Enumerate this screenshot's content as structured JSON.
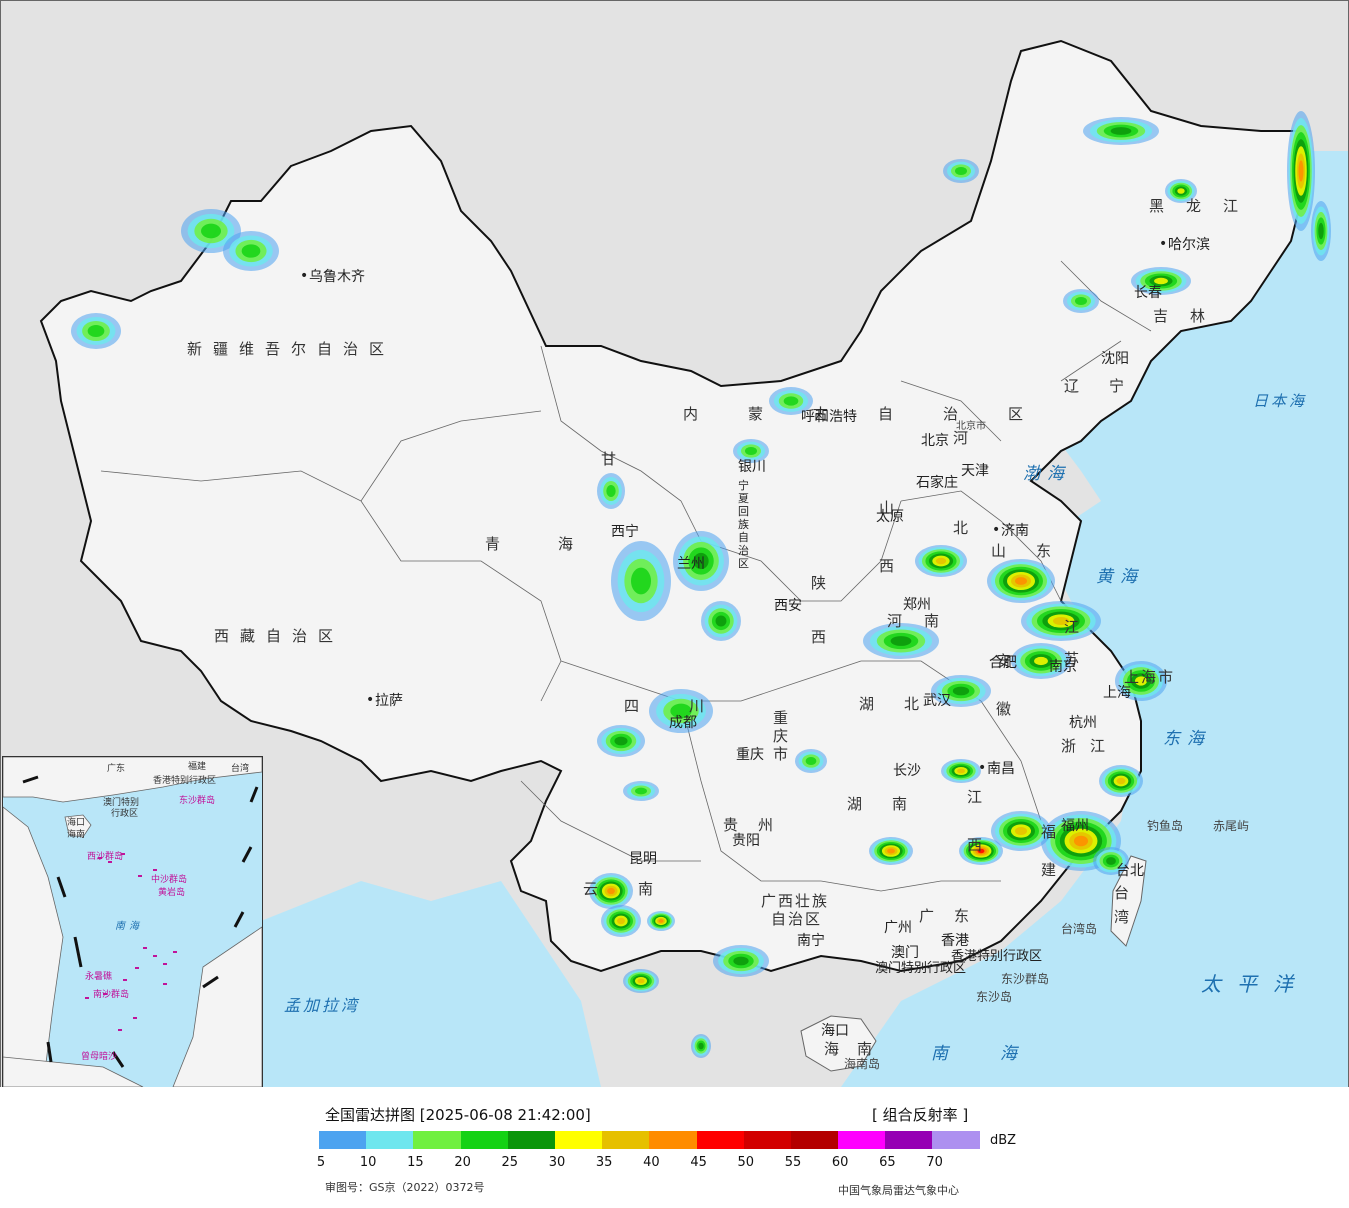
{
  "legend": {
    "title": "全国雷达拼图 [2025-06-08 21:42:00]",
    "product": "[ 组合反射率 ]",
    "unit": "dBZ",
    "approval": "审图号：GS京（2022）0372号",
    "credit": "中国气象局雷达气象中心",
    "ticks": [
      "5",
      "10",
      "15",
      "20",
      "25",
      "30",
      "35",
      "40",
      "45",
      "50",
      "55",
      "60",
      "65",
      "70"
    ],
    "colors": [
      "#4da3f0",
      "#6ee6ee",
      "#70f040",
      "#14d214",
      "#0a960a",
      "#ffff00",
      "#e6c000",
      "#ff8c00",
      "#ff0000",
      "#d20000",
      "#b40000",
      "#ff00ff",
      "#9600b4",
      "#ad90f0"
    ]
  },
  "labels": {
    "xinjiang": "新疆维吾尔自治区",
    "xizang": "西藏自治区",
    "qinghai": "青海",
    "gansu": "甘",
    "sichuan": "四川",
    "yunnan": "云南",
    "guizhou": "贵州",
    "chongqing": "重庆市",
    "shaanxi": "陕西",
    "ningxia": "宁夏回族自治区",
    "neimenggu": "内蒙古自治区",
    "heilongjiang": "黑龙江",
    "jilin": "吉林",
    "liaoning": "辽宁",
    "hebei": "河北",
    "shanxi": "山西",
    "shandong": "山东",
    "henan": "河南",
    "hubei": "湖北",
    "hunan": "湖南",
    "jiangxi": "江西",
    "anhui": "安徽",
    "jiangsu": "江苏",
    "zhejiang": "浙江",
    "fujian": "福建",
    "guangdong": "广东",
    "guangxi_1": "广西壮族",
    "guangxi_2": "自治区",
    "hainan": "海南",
    "taiwan": "台湾",
    "shanghai": "上海市",
    "hk": "香港特别行政区",
    "macau": "澳门特别行政区"
  },
  "cities": {
    "urumqi": "乌鲁木齐",
    "lhasa": "拉萨",
    "xining": "西宁",
    "lanzhou": "兰州",
    "yinchuan": "银川",
    "hohhot": "呼和浩特",
    "beijing": "北京",
    "beijing_city": "北京市",
    "tianjin": "天津",
    "shijiazhuang": "石家庄",
    "taiyuan": "太原",
    "jinan": "济南",
    "zhengzhou": "郑州",
    "xian": "西安",
    "chengdu": "成都",
    "chongqing": "重庆",
    "guiyang": "贵阳",
    "kunming": "昆明",
    "nanning": "南宁",
    "guangzhou": "广州",
    "hongkong": "香港",
    "macau": "澳门",
    "haikou": "海口",
    "changsha": "长沙",
    "wuhan": "武汉",
    "nanchang": "南昌",
    "hefei": "合肥",
    "nanjing": "南京",
    "shanghai": "上海",
    "hangzhou": "杭州",
    "fuzhou": "福州",
    "taipei": "台北",
    "shenyang": "沈阳",
    "changchun": "长春",
    "harbin": "哈尔滨"
  },
  "seas": {
    "bohai": "渤海",
    "huanghai": "黄海",
    "donghai": "东海",
    "nanhai": "南海",
    "taipingyang": "太平洋",
    "ribenhai": "日本海",
    "mengjialawan": "孟加拉湾"
  },
  "islands": {
    "diaoyu": "钓鱼岛",
    "chiwei": "赤尾屿",
    "taiwan_dao": "台湾岛",
    "hainan_dao": "海南岛",
    "dongsha_qundao": "东沙群岛",
    "dongsha_dao": "东沙岛"
  },
  "inset": {
    "guangdong": "广东",
    "fujian": "福建",
    "taiwan": "台湾",
    "hk": "香港特别行政区",
    "macau_1": "澳门特别",
    "macau_2": "行政区",
    "dongsha": "东沙群岛",
    "haikou": "海口",
    "hainan": "海南",
    "xisha": "西沙群岛",
    "zhongsha": "中沙群岛",
    "huangyan": "黄岩岛",
    "nansha": "南沙群岛",
    "yongshu": "永暑礁",
    "zengmu": "曾母暗沙",
    "nanhai": "南海"
  }
}
